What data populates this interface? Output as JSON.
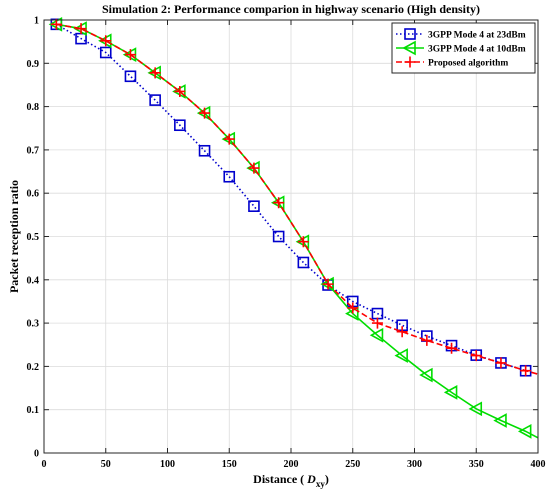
{
  "chart_data": {
    "type": "line",
    "title": "Simulation 2: Performance comparion in highway scenario (High density)",
    "xlabel": "Distance (",
    "xlabel_symbol": "D",
    "xlabel_subscript": "xy",
    "xlabel_close": ")",
    "ylabel": "Packet reception ratio",
    "xlim": [
      0,
      400
    ],
    "ylim": [
      0,
      1
    ],
    "xticks": [
      0,
      50,
      100,
      150,
      200,
      250,
      300,
      350,
      400
    ],
    "yticks": [
      0,
      0.1,
      0.2,
      0.3,
      0.4,
      0.5,
      0.6,
      0.7,
      0.8,
      0.9,
      1
    ],
    "xtick_labels": [
      "0",
      "50",
      "100",
      "150",
      "200",
      "250",
      "300",
      "350",
      "400"
    ],
    "ytick_labels": [
      "0",
      "0.1",
      "0.2",
      "0.3",
      "0.4",
      "0.5",
      "0.6",
      "0.7",
      "0.8",
      "0.9",
      "1"
    ],
    "grid": true,
    "legend_position": "top-right",
    "series": [
      {
        "name": "3GPP Mode 4 at 23dBm",
        "color": "#0000cc",
        "line_style": "dotted",
        "marker": "square",
        "x": [
          10,
          30,
          50,
          70,
          90,
          110,
          130,
          150,
          170,
          190,
          210,
          230,
          250,
          270,
          290,
          310,
          330,
          350,
          370,
          390
        ],
        "y": [
          0.99,
          0.957,
          0.925,
          0.87,
          0.815,
          0.757,
          0.698,
          0.638,
          0.57,
          0.5,
          0.44,
          0.388,
          0.35,
          0.322,
          0.295,
          0.27,
          0.248,
          0.226,
          0.208,
          0.19
        ]
      },
      {
        "name": "3GPP Mode 4 at 10dBm",
        "color": "#00dd00",
        "line_style": "solid",
        "marker": "triangle-left",
        "x": [
          10,
          30,
          50,
          70,
          90,
          110,
          130,
          150,
          170,
          190,
          210,
          230,
          250,
          270,
          290,
          310,
          330,
          350,
          370,
          390,
          400
        ],
        "y": [
          0.99,
          0.98,
          0.952,
          0.92,
          0.878,
          0.835,
          0.785,
          0.725,
          0.658,
          0.578,
          0.488,
          0.39,
          0.322,
          0.272,
          0.225,
          0.18,
          0.14,
          0.102,
          0.075,
          0.05,
          0.035
        ]
      },
      {
        "name": "Proposed algorithm",
        "color": "#ff0000",
        "line_style": "dashed",
        "marker": "plus",
        "x": [
          10,
          30,
          50,
          70,
          90,
          110,
          130,
          150,
          170,
          190,
          210,
          230,
          250,
          270,
          290,
          310,
          330,
          350,
          370,
          390,
          400
        ],
        "y": [
          0.99,
          0.98,
          0.952,
          0.92,
          0.878,
          0.835,
          0.785,
          0.725,
          0.658,
          0.578,
          0.488,
          0.39,
          0.335,
          0.3,
          0.28,
          0.26,
          0.242,
          0.225,
          0.208,
          0.19,
          0.182
        ]
      }
    ]
  }
}
